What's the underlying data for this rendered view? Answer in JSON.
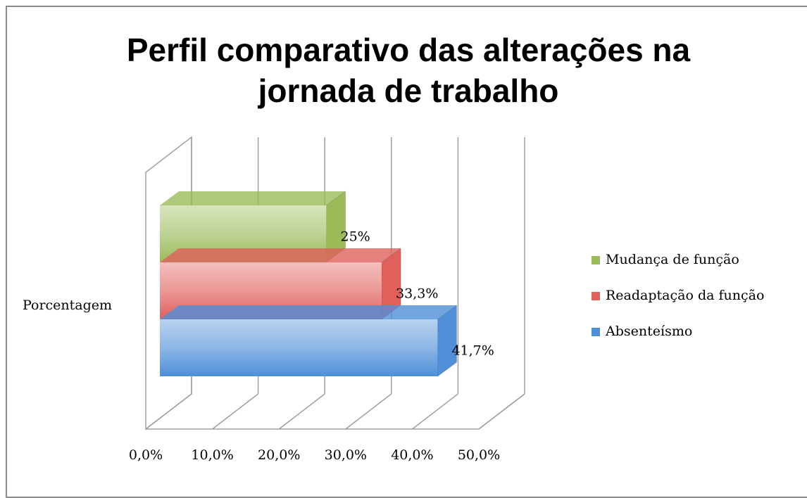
{
  "chart_data": {
    "type": "bar3d",
    "orientation": "horizontal",
    "title": "Perfil comparativo das alterações na jornada de trabalho",
    "categories": [
      "Porcentagem"
    ],
    "series": [
      {
        "name": "Mudança de função",
        "color": "#9bbb59",
        "values": [
          25
        ],
        "value_labels": [
          "25%"
        ]
      },
      {
        "name": "Readaptação da função",
        "color": "#e0605c",
        "values": [
          33.3
        ],
        "value_labels": [
          "33,3%"
        ]
      },
      {
        "name": "Absenteísmo",
        "color": "#4f8fd8",
        "values": [
          41.7
        ],
        "value_labels": [
          "41,7%"
        ]
      }
    ],
    "xlim": [
      0,
      50
    ],
    "xticks": [
      {
        "value": 0,
        "label": "0,0%"
      },
      {
        "value": 10,
        "label": "10,0%"
      },
      {
        "value": 20,
        "label": "20,0%"
      },
      {
        "value": 30,
        "label": "30,0%"
      },
      {
        "value": 40,
        "label": "40,0%"
      },
      {
        "value": 50,
        "label": "50,0%"
      }
    ],
    "grid": true,
    "legend": "right"
  }
}
